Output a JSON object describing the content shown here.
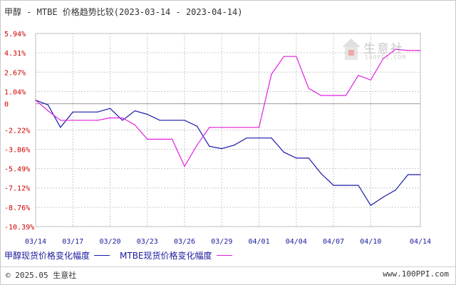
{
  "title": "甲醇 - MTBE 价格趋势比较(2023-03-14 - 2023-04-14)",
  "logo": {
    "text": "生意社",
    "sub": "100PPI.COM"
  },
  "footer": {
    "copyright": "© 2025.05 生意社",
    "site": "www.100PPI.com"
  },
  "colors": {
    "series1": "#1a1aa8",
    "series2": "#e020e0",
    "grid": "#c8c8c8",
    "zero": "#999999",
    "ytick": "#cc0000",
    "xtick": "#1a1a9c"
  },
  "chart_data": {
    "type": "line",
    "title": "甲醇 - MTBE 价格趋势比较(2023-03-14 - 2023-04-14)",
    "y_ticks": [
      "5.94%",
      "4.31%",
      "2.67%",
      "1.04%",
      "0",
      "-2.22%",
      "-3.86%",
      "-5.49%",
      "-7.12%",
      "-8.76%",
      "-10.39%"
    ],
    "y_tick_values": [
      5.94,
      4.31,
      2.67,
      1.04,
      0,
      -2.22,
      -3.86,
      -5.49,
      -7.12,
      -8.76,
      -10.39
    ],
    "ylim": [
      -10.39,
      5.94
    ],
    "x_ticks": [
      "03/14",
      "03/17",
      "03/20",
      "03/23",
      "03/26",
      "03/29",
      "04/01",
      "04/04",
      "04/07",
      "04/10",
      "04/14"
    ],
    "x": [
      "03/14",
      "03/15",
      "03/16",
      "03/17",
      "03/18",
      "03/19",
      "03/20",
      "03/21",
      "03/22",
      "03/23",
      "03/24",
      "03/25",
      "03/26",
      "03/27",
      "03/28",
      "03/29",
      "03/30",
      "03/31",
      "04/01",
      "04/02",
      "04/03",
      "04/04",
      "04/05",
      "04/06",
      "04/07",
      "04/08",
      "04/09",
      "04/10",
      "04/11",
      "04/12",
      "04/13",
      "04/14"
    ],
    "series": [
      {
        "name": "甲醇现货价格变化幅度",
        "values": [
          0.3,
          -0.1,
          -2.0,
          -0.7,
          -0.7,
          -0.7,
          -0.4,
          -1.4,
          -0.6,
          -0.9,
          -1.4,
          -1.4,
          -1.4,
          -1.9,
          -3.6,
          -3.8,
          -3.5,
          -2.9,
          -2.9,
          -2.9,
          -4.1,
          -4.6,
          -4.6,
          -5.9,
          -6.9,
          -6.9,
          -6.9,
          -8.6,
          -7.9,
          -7.3,
          -6.0,
          -6.0
        ]
      },
      {
        "name": "MTBE现货价格变化幅度",
        "values": [
          0.3,
          -0.6,
          -1.4,
          -1.4,
          -1.4,
          -1.4,
          -1.2,
          -1.2,
          -1.8,
          -3.0,
          -3.0,
          -3.0,
          -5.3,
          -3.5,
          -2.0,
          -2.0,
          -2.0,
          -2.0,
          -2.0,
          2.5,
          4.0,
          4.0,
          1.3,
          0.7,
          0.7,
          0.7,
          2.4,
          2.0,
          3.8,
          4.6,
          4.5,
          4.5
        ]
      }
    ],
    "grid": true,
    "legend": "bottom-left"
  }
}
